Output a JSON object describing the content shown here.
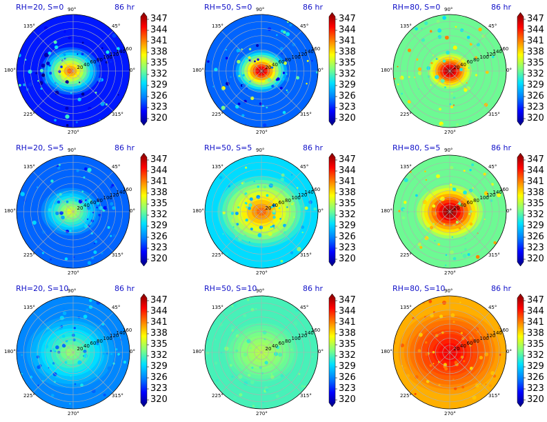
{
  "figure": {
    "colormap": [
      "#00007f",
      "#0000ff",
      "#0080ff",
      "#00e0ff",
      "#80ff80",
      "#ffff00",
      "#ff8000",
      "#ff0000",
      "#7f0000"
    ],
    "colorbar_ticks": [
      "347",
      "344",
      "341",
      "338",
      "335",
      "332",
      "329",
      "326",
      "323",
      "320"
    ],
    "angle_labels": [
      "90°",
      "45°",
      "0°",
      "315°",
      "270°",
      "225°",
      "180°",
      "135°"
    ],
    "ring_labels": [
      "20",
      "40",
      "60",
      "80",
      "100",
      "120",
      "140",
      "160"
    ],
    "panels": [
      {
        "title": "RH=20, S=0",
        "time": "86 hr"
      },
      {
        "title": "RH=50, S=0",
        "time": "86 hr"
      },
      {
        "title": "RH=80, S=0",
        "time": "86 hr"
      },
      {
        "title": "RH=20, S=5",
        "time": "86 hr"
      },
      {
        "title": "RH=50, S=5",
        "time": "86 hr"
      },
      {
        "title": "RH=80, S=5",
        "time": "86 hr"
      },
      {
        "title": "RH=20, S=10",
        "time": "86 hr"
      },
      {
        "title": "RH=50, S=10",
        "time": "86 hr"
      },
      {
        "title": "RH=80, S=10",
        "time": "86 hr"
      }
    ]
  },
  "chart_data": {
    "type": "heatmap",
    "projection": "polar",
    "colorbar_range": [
      320,
      347
    ],
    "radial_ticks": [
      20,
      40,
      60,
      80,
      100,
      120,
      140,
      160
    ],
    "angular_ticks_deg": [
      0,
      45,
      90,
      135,
      180,
      225,
      270,
      315
    ],
    "grid": true,
    "time": "86 hr",
    "panels": [
      {
        "title": "RH=20, S=0",
        "background_value": 324,
        "core_value": 341,
        "core_radius": 40
      },
      {
        "title": "RH=50, S=0",
        "background_value": 326,
        "core_value": 346,
        "core_radius": 35
      },
      {
        "title": "RH=80, S=0",
        "background_value": 333,
        "core_value": 347,
        "core_radius": 30
      },
      {
        "title": "RH=20, S=5",
        "background_value": 326,
        "core_value": 336,
        "core_radius": 40
      },
      {
        "title": "RH=50, S=5",
        "background_value": 330,
        "core_value": 341,
        "core_radius": 60
      },
      {
        "title": "RH=80, S=5",
        "background_value": 333,
        "core_value": 347,
        "core_radius": 45
      },
      {
        "title": "RH=20, S=10",
        "background_value": 327,
        "core_value": 334,
        "core_radius": 60
      },
      {
        "title": "RH=50, S=10",
        "background_value": 332,
        "core_value": 335,
        "core_radius": 50
      },
      {
        "title": "RH=80, S=10",
        "background_value": 339,
        "core_value": 344,
        "core_radius": 70
      }
    ]
  }
}
